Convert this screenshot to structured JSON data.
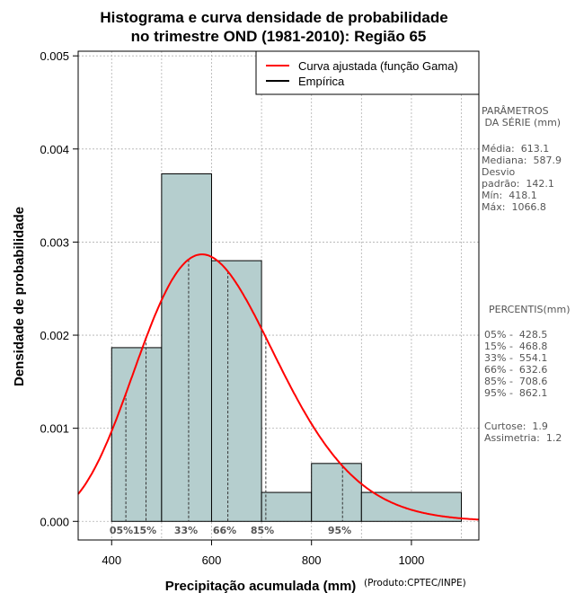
{
  "chart_data": {
    "type": "histogram",
    "title_line1": "Histograma e curva densidade de probabilidade",
    "title_line2": "no trimestre OND (1981-2010): Região 65",
    "xlabel": "Precipitação acumulada (mm)",
    "ylabel": "Densidade de probabilidade",
    "credit": "(Produto:CPTEC/INPE)",
    "xlim": [
      333,
      1135
    ],
    "ylim": [
      -0.0002,
      0.00505
    ],
    "x_ticks": [
      400,
      600,
      800,
      1000
    ],
    "y_ticks": [
      "0.000",
      "0.001",
      "0.002",
      "0.003",
      "0.004",
      "0.005"
    ],
    "bins": [
      {
        "from": 400,
        "to": 500,
        "density": 0.001866
      },
      {
        "from": 500,
        "to": 600,
        "density": 0.003733
      },
      {
        "from": 600,
        "to": 700,
        "density": 0.0028
      },
      {
        "from": 700,
        "to": 800,
        "density": 0.000311
      },
      {
        "from": 800,
        "to": 900,
        "density": 0.000622
      },
      {
        "from": 900,
        "to": 1100,
        "density": 0.000311
      }
    ],
    "gamma_fit": {
      "shape": 18.6,
      "scale": 33.0
    },
    "percentile_lines": [
      {
        "label": "05%",
        "value": 428.5
      },
      {
        "label": "15%",
        "value": 468.8
      },
      {
        "label": "33%",
        "value": 554.1
      },
      {
        "label": "66%",
        "value": 632.6
      },
      {
        "label": "85%",
        "value": 708.6
      },
      {
        "label": "95%",
        "value": 862.1
      }
    ],
    "legend": [
      {
        "label": "Curva ajustada (função Gama)",
        "color": "#ff0000"
      },
      {
        "label": "Empírica",
        "color": "#000000"
      }
    ],
    "colors": {
      "bar_fill": "#b5cece",
      "curve": "#ff0000",
      "grid": "#b0b0b0"
    }
  },
  "side_panel": {
    "params_title": "PARÂMETROS\n DA SÉRIE (mm)",
    "params": "Média:  613.1\nMediana:  587.9\nDesvio\npadrão:  142.1\nMín:  418.1\nMáx:  1066.8",
    "percentis_title": "PERCENTIS(mm)",
    "percentis": "05% -  428.5\n15% -  468.8\n33% -  554.1\n66% -  632.6\n85% -  708.6\n95% -  862.1",
    "extra": "Curtose:  1.9\nAssimetria:  1.2"
  }
}
